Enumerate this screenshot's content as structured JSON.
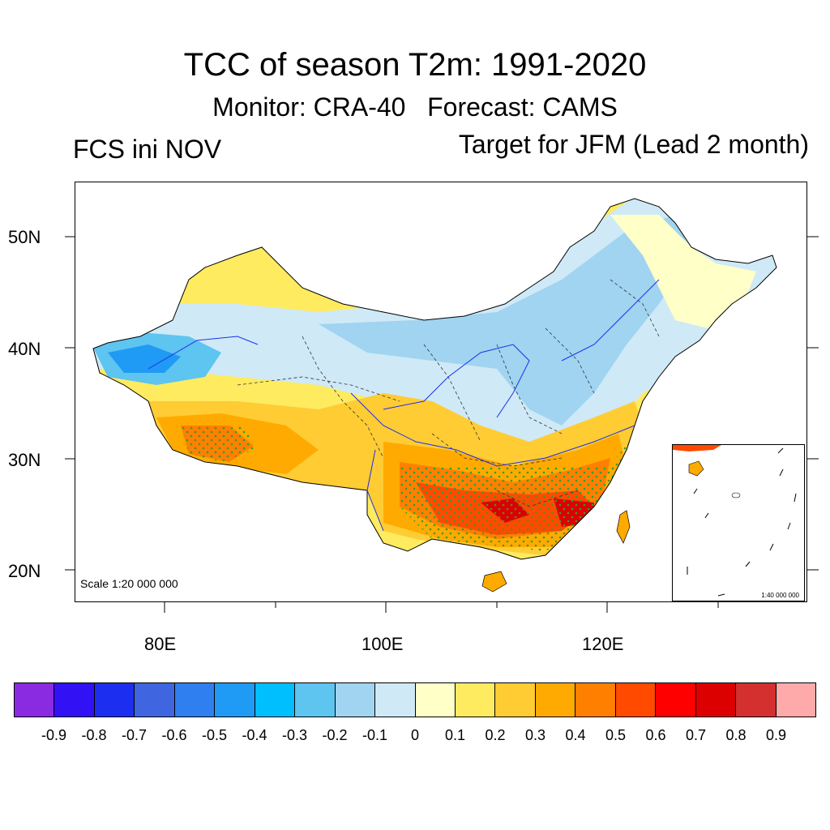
{
  "header": {
    "title": "TCC of season T2m: 1991-2020",
    "subtitle": "Monitor: CRA-40   Forecast: CAMS",
    "left_label": "FCS ini NOV",
    "right_label": "Target for JFM (Lead 2 month)"
  },
  "map": {
    "lat_labels": [
      "50N",
      "40N",
      "30N",
      "20N"
    ],
    "lon_labels": [
      "80E",
      "100E",
      "120E"
    ],
    "scale_main": "Scale 1:20 000 000",
    "scale_inset": "1:40 000 000"
  },
  "colorbar": {
    "colors": [
      "#8a2be2",
      "#3311f5",
      "#1c2ff0",
      "#3f66e0",
      "#2f7ff0",
      "#1f9af5",
      "#00bfff",
      "#5ec4f0",
      "#a0d4f0",
      "#cfe9f7",
      "#ffffc8",
      "#ffeb60",
      "#ffcc33",
      "#ffaa00",
      "#ff8000",
      "#ff4a00",
      "#ff0000",
      "#dd0000",
      "#d43030",
      "#ffaaaa"
    ],
    "labels": [
      "-0.9",
      "-0.8",
      "-0.7",
      "-0.6",
      "-0.5",
      "-0.4",
      "-0.3",
      "-0.2",
      "-0.1",
      "0",
      "0.1",
      "0.2",
      "0.3",
      "0.4",
      "0.5",
      "0.6",
      "0.7",
      "0.8",
      "0.9"
    ]
  }
}
